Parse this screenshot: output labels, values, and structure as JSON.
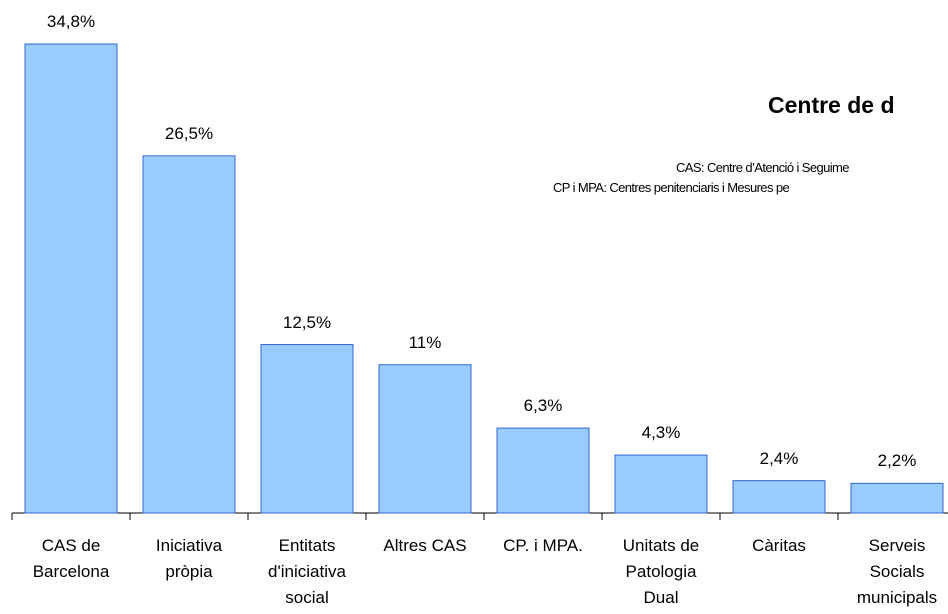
{
  "chart_data": {
    "type": "bar",
    "title": "Centre de d",
    "annotations": [
      "CAS: Centre d’Atenció i Seguime",
      "CP i MPA: Centres penitenciaris i Mesures pe"
    ],
    "categories": [
      "CAS de\nBarcelona",
      "Iniciativa\npròpia",
      "Entitats\nd'iniciativa\nsocial",
      "Altres CAS",
      "CP. i MPA.",
      "Unitats de\nPatologia\nDual",
      "Càritas",
      "Serveis\nSocials\nmunicipals"
    ],
    "values": [
      34.8,
      26.5,
      12.5,
      11,
      6.3,
      4.3,
      2.4,
      2.2
    ],
    "value_labels": [
      "34,8%",
      "26,5%",
      "12,5%",
      "11%",
      "6,3%",
      "4,3%",
      "2,4%",
      "2,2%"
    ],
    "color": "#99ccff"
  }
}
